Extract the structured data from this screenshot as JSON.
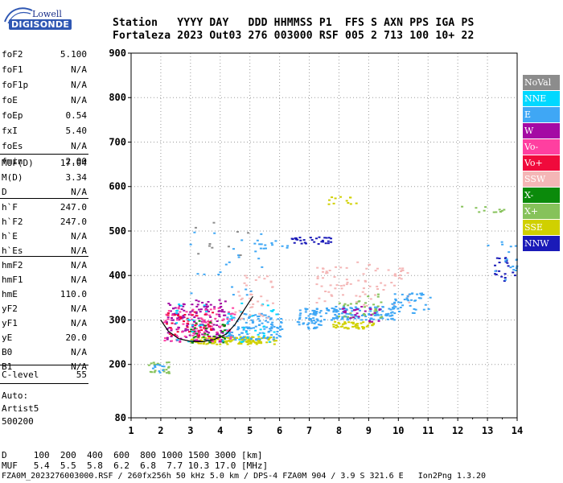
{
  "logo": {
    "line1": "Lowell",
    "line2": "DIGISONDE"
  },
  "header": {
    "row1": "Station   YYYY DAY   DDD HHMMSS P1  FFS S AXN PPS IGA PS",
    "row2": "Fortaleza 2023 Out03 276 003000 RSF 005 2 713 100 10+ 22"
  },
  "params": {
    "group1": [
      {
        "name": "foF2",
        "value": "5.100"
      },
      {
        "name": "foF1",
        "value": "N/A"
      },
      {
        "name": "foF1p",
        "value": "N/A"
      },
      {
        "name": "foE",
        "value": "N/A"
      },
      {
        "name": "foEp",
        "value": "0.54"
      },
      {
        "name": "fxI",
        "value": "5.40"
      },
      {
        "name": "foEs",
        "value": "N/A"
      },
      {
        "name": "fmin",
        "value": "2.00"
      }
    ],
    "group2": [
      {
        "name": "MUF(D)",
        "value": "17.04"
      },
      {
        "name": "M(D)",
        "value": "3.34"
      },
      {
        "name": "D",
        "value": "N/A"
      }
    ],
    "group3": [
      {
        "name": "h`F",
        "value": "247.0"
      },
      {
        "name": "h`F2",
        "value": "247.0"
      },
      {
        "name": "h`E",
        "value": "N/A"
      },
      {
        "name": "h`Es",
        "value": "N/A"
      }
    ],
    "group4": [
      {
        "name": "hmF2",
        "value": "N/A"
      },
      {
        "name": "hmF1",
        "value": "N/A"
      },
      {
        "name": "hmE",
        "value": "110.0"
      },
      {
        "name": "yF2",
        "value": "N/A"
      },
      {
        "name": "yF1",
        "value": "N/A"
      },
      {
        "name": "yE",
        "value": "20.0"
      },
      {
        "name": "B0",
        "value": "N/A"
      },
      {
        "name": "B1",
        "value": "N/A"
      }
    ],
    "group5": [
      {
        "name": "C-level",
        "value": "55"
      }
    ]
  },
  "auto": {
    "line1": "Auto:",
    "line2": "Artist5",
    "line3": "500200"
  },
  "legend": [
    {
      "label": "NoVal",
      "color": "#8c8c8c"
    },
    {
      "label": "NNE",
      "color": "#00d8ff"
    },
    {
      "label": "E",
      "color": "#3fa7f5"
    },
    {
      "label": "W",
      "color": "#a40aa4"
    },
    {
      "label": "Vo-",
      "color": "#ff3fa0"
    },
    {
      "label": "Vo+",
      "color": "#f00a3c"
    },
    {
      "label": "SSW",
      "color": "#f4b6b6"
    },
    {
      "label": "X-",
      "color": "#0b8a0b"
    },
    {
      "label": "X+",
      "color": "#86c25a"
    },
    {
      "label": "SSE",
      "color": "#d0d000"
    },
    {
      "label": "NNW",
      "color": "#1a1ab8"
    }
  ],
  "chart_data": {
    "type": "scatter",
    "title": "",
    "xlabel": "",
    "ylabel": "",
    "xlim": [
      1,
      14
    ],
    "ylim": [
      80,
      900
    ],
    "xticks": [
      1,
      2,
      3,
      4,
      5,
      6,
      7,
      8,
      9,
      10,
      11,
      12,
      13,
      14
    ],
    "yticks": [
      80,
      200,
      300,
      400,
      500,
      600,
      700,
      800,
      900
    ],
    "grid": true,
    "clusters": [
      {
        "color": "#d0d000",
        "x": [
          3.0,
          5.9
        ],
        "y": [
          245,
          262
        ],
        "n": 140
      },
      {
        "color": "#3fa7f5",
        "x": [
          4.2,
          6.1
        ],
        "y": [
          255,
          315
        ],
        "n": 120
      },
      {
        "color": "#a40aa4",
        "x": [
          2.2,
          4.2
        ],
        "y": [
          250,
          345
        ],
        "n": 160
      },
      {
        "color": "#ff3fa0",
        "x": [
          2.1,
          4.5
        ],
        "y": [
          250,
          330
        ],
        "n": 90
      },
      {
        "color": "#f00a3c",
        "x": [
          2.2,
          3.8
        ],
        "y": [
          260,
          320
        ],
        "n": 40
      },
      {
        "color": "#0b8a0b",
        "x": [
          3.0,
          4.2
        ],
        "y": [
          245,
          300
        ],
        "n": 30
      },
      {
        "color": "#00d8ff",
        "x": [
          2.4,
          6.1
        ],
        "y": [
          250,
          340
        ],
        "n": 50
      },
      {
        "color": "#f4b6b6",
        "x": [
          4.5,
          5.8
        ],
        "y": [
          300,
          400
        ],
        "n": 40
      },
      {
        "color": "#3fa7f5",
        "x": [
          6.6,
          7.4
        ],
        "y": [
          280,
          330
        ],
        "n": 60
      },
      {
        "color": "#3fa7f5",
        "x": [
          7.5,
          9.9
        ],
        "y": [
          300,
          330
        ],
        "n": 120
      },
      {
        "color": "#d0d000",
        "x": [
          7.8,
          9.2
        ],
        "y": [
          280,
          296
        ],
        "n": 50
      },
      {
        "color": "#f4b6b6",
        "x": [
          7.2,
          10.4
        ],
        "y": [
          330,
          430
        ],
        "n": 80
      },
      {
        "color": "#86c25a",
        "x": [
          8.0,
          9.6
        ],
        "y": [
          300,
          360
        ],
        "n": 30
      },
      {
        "color": "#a40aa4",
        "x": [
          8.0,
          9.4
        ],
        "y": [
          295,
          330
        ],
        "n": 25
      },
      {
        "color": "#3fa7f5",
        "x": [
          9.8,
          11.1
        ],
        "y": [
          315,
          360
        ],
        "n": 45
      },
      {
        "color": "#1a1ab8",
        "x": [
          6.4,
          7.8
        ],
        "y": [
          470,
          486
        ],
        "n": 30
      },
      {
        "color": "#3fa7f5",
        "x": [
          5.0,
          6.4
        ],
        "y": [
          460,
          480
        ],
        "n": 12
      },
      {
        "color": "#d0d000",
        "x": [
          7.6,
          8.6
        ],
        "y": [
          560,
          580
        ],
        "n": 12
      },
      {
        "color": "#3fa7f5",
        "x": [
          2.8,
          5.5
        ],
        "y": [
          350,
          500
        ],
        "n": 25
      },
      {
        "color": "#86c25a",
        "x": [
          1.6,
          2.3
        ],
        "y": [
          180,
          205
        ],
        "n": 22
      },
      {
        "color": "#3fa7f5",
        "x": [
          1.7,
          2.2
        ],
        "y": [
          180,
          200
        ],
        "n": 10
      },
      {
        "color": "#1a1ab8",
        "x": [
          13.2,
          14.0
        ],
        "y": [
          380,
          440
        ],
        "n": 20
      },
      {
        "color": "#3fa7f5",
        "x": [
          13.0,
          14.0
        ],
        "y": [
          390,
          480
        ],
        "n": 18
      },
      {
        "color": "#86c25a",
        "x": [
          12.0,
          13.6
        ],
        "y": [
          540,
          560
        ],
        "n": 12
      },
      {
        "color": "#8c8c8c",
        "x": [
          3.0,
          5.0
        ],
        "y": [
          440,
          540
        ],
        "n": 10
      }
    ],
    "trace": {
      "color": "#000000",
      "x": [
        2.0,
        2.25,
        2.6,
        3.0,
        3.4,
        3.8,
        4.2,
        4.5,
        4.8,
        5.1
      ],
      "y": [
        300,
        275,
        258,
        252,
        251,
        256,
        268,
        290,
        322,
        353
      ]
    }
  },
  "bottom": {
    "d_row": "D     100  200  400  600  800 1000 1500 3000 [km]",
    "muf_row": "MUF   5.4  5.5  5.8  6.2  6.8  7.7 10.3 17.0 [MHz]",
    "footer": "FZA0M_2023276003000.RSF / 260fx256h 50 kHz 5.0 km / DPS-4 FZA0M 904 / 3.9 S 321.6 E   Ion2Png 1.3.20"
  }
}
